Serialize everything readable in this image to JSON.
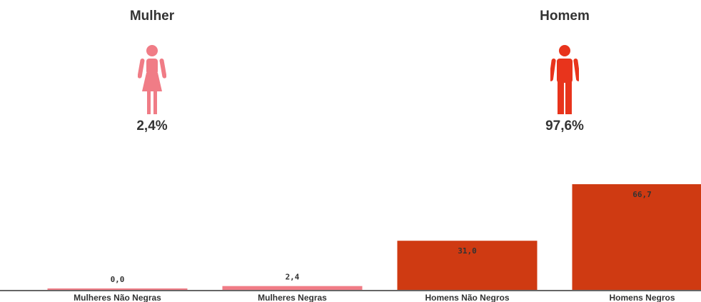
{
  "panels": {
    "women": {
      "title": "Mulher",
      "percent": "2,4%",
      "icon": "woman-icon",
      "color": "#f07c86"
    },
    "men": {
      "title": "Homem",
      "percent": "97,6%",
      "icon": "man-icon",
      "color": "#e8341c"
    }
  },
  "chart_data": {
    "type": "bar",
    "categories": [
      "Mulheres Não Negras",
      "Mulheres Negras",
      "Homens Não Negros",
      "Homens Negros"
    ],
    "values": [
      0.0,
      2.4,
      31.0,
      66.7
    ],
    "value_labels": [
      "0,0",
      "2,4",
      "31,0",
      "66,7"
    ],
    "colors": [
      "#f07c86",
      "#f07c86",
      "#cf3a12",
      "#cf3a12"
    ],
    "title": "",
    "xlabel": "",
    "ylabel": "",
    "ylim": [
      0,
      66.7
    ],
    "grid": false
  }
}
